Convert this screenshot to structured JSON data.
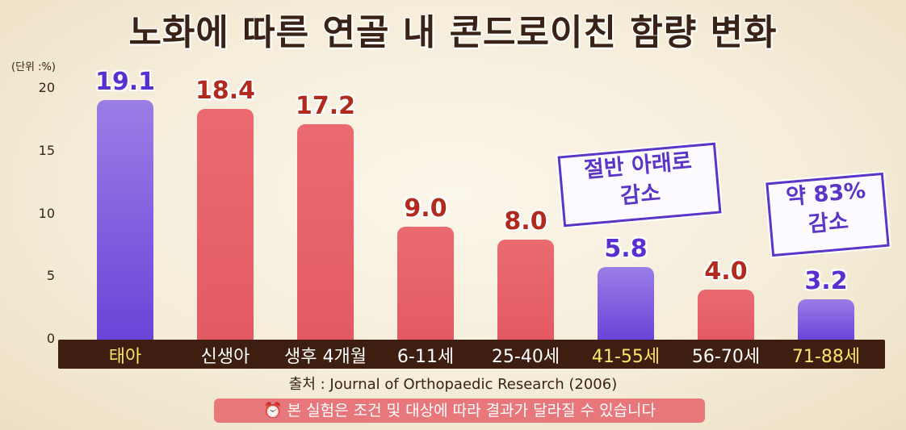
{
  "title": "노화에 따른 연골 내 콘드로이친 함량 변화",
  "unit_label": "(단위 :%)",
  "chart_data": {
    "type": "bar",
    "categories": [
      "태아",
      "신생아",
      "생후 4개월",
      "6-11세",
      "25-40세",
      "41-55세",
      "56-70세",
      "71-88세"
    ],
    "values": [
      19.1,
      18.4,
      17.2,
      9.0,
      8.0,
      5.8,
      4.0,
      3.2
    ],
    "value_labels": [
      "19.1",
      "18.4",
      "17.2",
      "9.0",
      "8.0",
      "5.8",
      "4.0",
      "3.2"
    ],
    "ylim": [
      0,
      20
    ],
    "yticks": [
      0,
      5,
      10,
      15,
      20
    ],
    "highlight_categories": [
      "태아",
      "41-55세",
      "71-88세"
    ],
    "colors": {
      "normal": "#e45a64",
      "highlight": "#6a44d8",
      "highlight_label": "#ffe46a"
    },
    "annotations": [
      {
        "line1": "절반 아래로",
        "line2": "감소"
      },
      {
        "line1": "약 83%",
        "line2": "감소"
      }
    ]
  },
  "source": "출처 : Journal of Orthopaedic Research (2006)",
  "disclaimer": "본 실험은 조건 및 대상에 따라 결과가 달라질 수 있습니다",
  "disclaimer_icon": "alarm-icon"
}
